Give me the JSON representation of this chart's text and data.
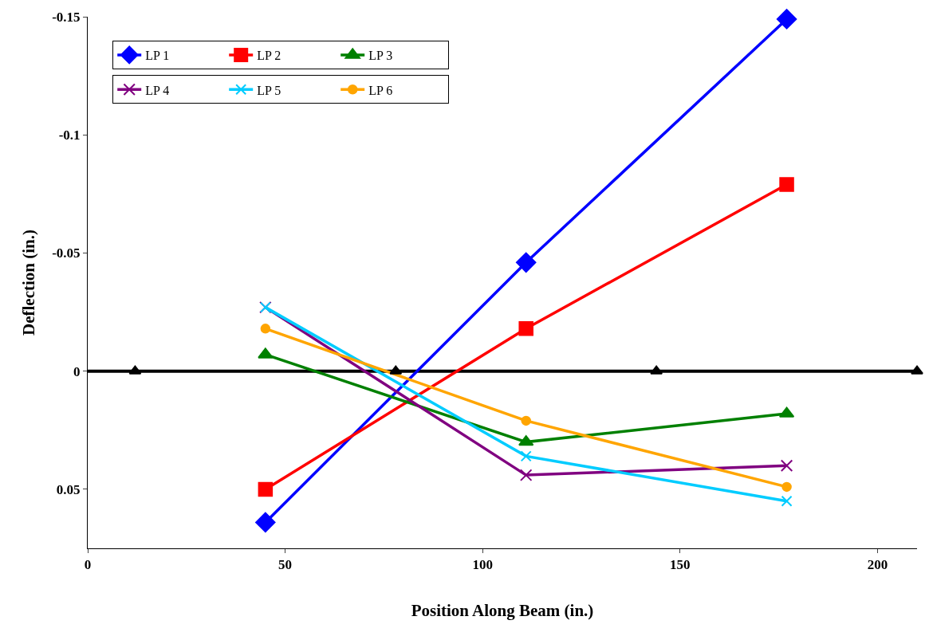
{
  "chart_data": {
    "type": "line",
    "xlabel": "Position Along Beam (in.)",
    "ylabel": "Deflection (in.)",
    "xlim": [
      0,
      210
    ],
    "xticks": [
      0,
      50,
      100,
      150,
      200
    ],
    "ylim": [
      0.075,
      -0.15
    ],
    "yticks": [
      0.05,
      0,
      -0.05,
      -0.1,
      -0.15
    ],
    "grid": false,
    "legend": "top left",
    "ref_lines": [
      {
        "axis": "y",
        "value": 0,
        "color": "#000000"
      }
    ],
    "series": [
      {
        "name": "LP 1",
        "color": "#0000ff",
        "marker": "diamond",
        "x": [
          45,
          111,
          177
        ],
        "values": [
          0.064,
          -0.046,
          -0.149
        ]
      },
      {
        "name": "LP 2",
        "color": "#ff0000",
        "marker": "square",
        "x": [
          45,
          111,
          177
        ],
        "values": [
          0.05,
          -0.018,
          -0.079
        ]
      },
      {
        "name": "LP 3",
        "color": "#008000",
        "marker": "triangle",
        "x": [
          45,
          111,
          177
        ],
        "values": [
          -0.007,
          0.03,
          0.018
        ]
      },
      {
        "name": "LP 4",
        "color": "#800080",
        "marker": "cross",
        "x": [
          45,
          111,
          177
        ],
        "values": [
          -0.027,
          0.044,
          0.04
        ]
      },
      {
        "name": "LP 5",
        "color": "#00ccff",
        "marker": "cross",
        "x": [
          45,
          111,
          177
        ],
        "values": [
          -0.027,
          0.036,
          0.055
        ]
      },
      {
        "name": "LP 6",
        "color": "#ffa500",
        "marker": "circle",
        "x": [
          45,
          111,
          177
        ],
        "values": [
          -0.018,
          0.021,
          0.049
        ]
      },
      {
        "type": "scatter",
        "color": "#000000",
        "marker": "triangle",
        "x": [
          12,
          78,
          144,
          210
        ],
        "values": [
          0,
          0,
          0,
          0
        ]
      }
    ]
  }
}
